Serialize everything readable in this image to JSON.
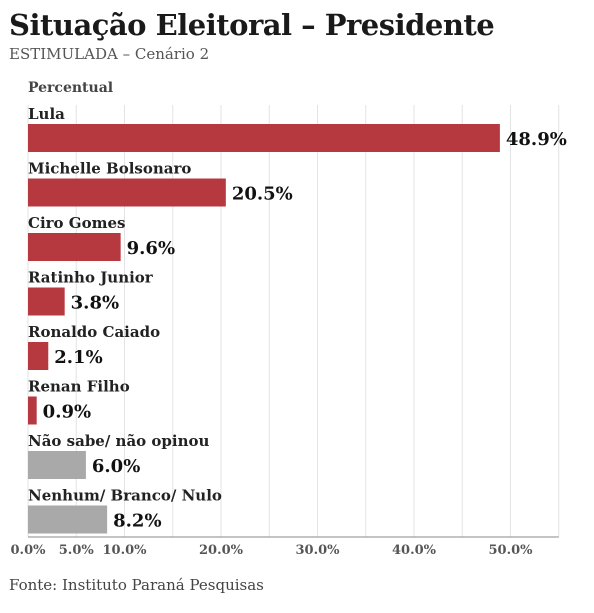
{
  "title": "Situação Eleitoral – Presidente",
  "subtitle": "ESTIMULADA – Cenário 2",
  "source": "Fonte: Instituto Paraná Pesquisas",
  "colors": {
    "candidate": "#b5393f",
    "other": "#a9a9a9",
    "grid": "#e3e3e3",
    "axis": "#555555"
  },
  "chart_data": {
    "type": "bar",
    "orientation": "horizontal",
    "axis_title": "Percentual",
    "categories": [
      "Lula",
      "Michelle Bolsonaro",
      "Ciro Gomes",
      "Ratinho Junior",
      "Ronaldo Caiado",
      "Renan Filho",
      "Não sabe/ não opinou",
      "Nenhum/ Branco/ Nulo"
    ],
    "values": [
      48.9,
      20.5,
      9.6,
      3.8,
      2.1,
      0.9,
      6.0,
      8.2
    ],
    "value_labels": [
      "48.9%",
      "20.5%",
      "9.6%",
      "3.8%",
      "2.1%",
      "0.9%",
      "6.0%",
      "8.2%"
    ],
    "bar_colors": [
      "candidate",
      "candidate",
      "candidate",
      "candidate",
      "candidate",
      "candidate",
      "other",
      "other"
    ],
    "xlim": [
      0,
      55
    ],
    "xticks": [
      0,
      5,
      10,
      20,
      30,
      40,
      50
    ],
    "xtick_labels": [
      "0.0%",
      "5.0%",
      "10.0%",
      "20.0%",
      "30.0%",
      "40.0%",
      "50.0%"
    ],
    "grid": true
  }
}
